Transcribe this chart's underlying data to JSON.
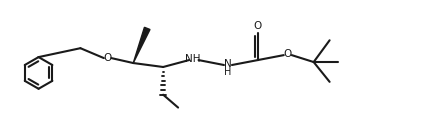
{
  "bg_color": "#ffffff",
  "line_color": "#1a1a1a",
  "lw": 1.4,
  "fig_width": 4.23,
  "fig_height": 1.33,
  "dpi": 100,
  "xlim": [
    0,
    100
  ],
  "ylim": [
    0,
    100
  ],
  "aspect": "auto"
}
